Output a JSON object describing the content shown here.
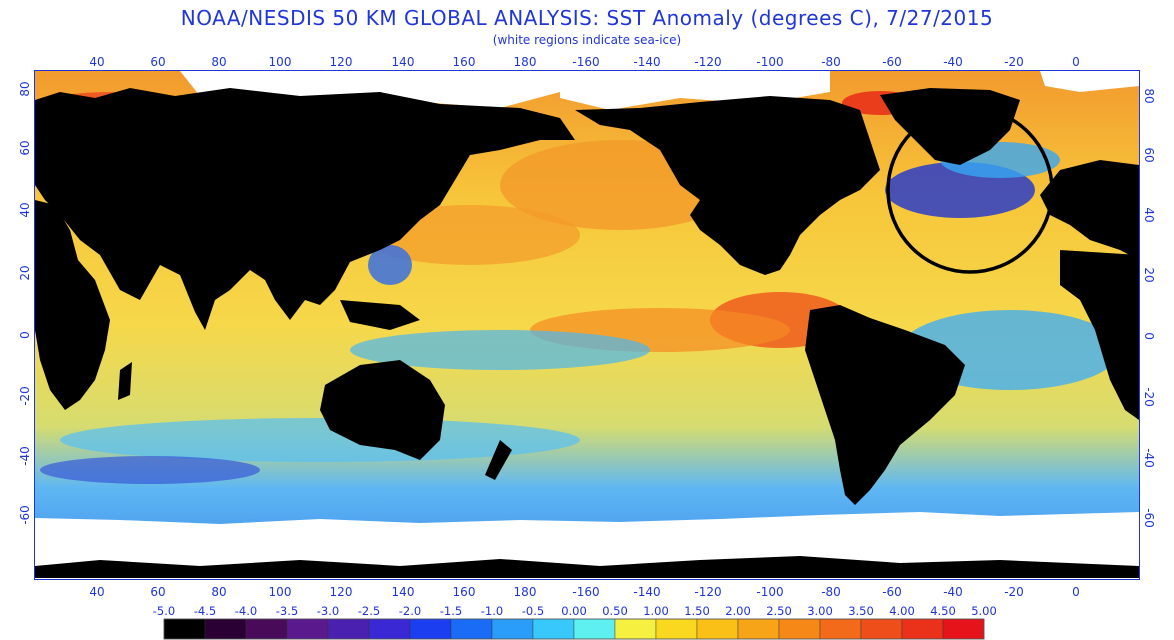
{
  "header": {
    "title": "NOAA/NESDIS 50 KM GLOBAL ANALYSIS: SST Anomaly (degrees C), 7/27/2015",
    "subtitle": "(white regions indicate sea-ice)"
  },
  "map": {
    "lon_labels": [
      "40",
      "60",
      "80",
      "100",
      "120",
      "140",
      "160",
      "180",
      "-160",
      "-140",
      "-120",
      "-100",
      "-80",
      "-60",
      "-40",
      "-20",
      "0"
    ],
    "lat_labels": [
      "80",
      "60",
      "40",
      "20",
      "0",
      "-20",
      "-40",
      "-60"
    ],
    "annotation": "circle-marking-north-atlantic-cold-anomaly"
  },
  "colorbar": {
    "labels": [
      "-5.0",
      "-4.5",
      "-4.0",
      "-3.5",
      "-3.0",
      "-2.5",
      "-2.0",
      "-1.5",
      "-1.0",
      "-0.5",
      "0.00",
      "0.50",
      "1.00",
      "1.50",
      "2.00",
      "2.50",
      "3.00",
      "3.50",
      "4.00",
      "4.50",
      "5.00"
    ],
    "colors": [
      "#000000",
      "#2a0034",
      "#4a0a5a",
      "#5a1a8e",
      "#4a20b0",
      "#3a28d4",
      "#1a3ef0",
      "#1a6cf6",
      "#2a9cfa",
      "#38c8fa",
      "#5ef0f0",
      "#f6f040",
      "#fbd820",
      "#fbc018",
      "#f8a418",
      "#f68818",
      "#f26a1a",
      "#ee4e1a",
      "#ea321a",
      "#e6141a"
    ]
  },
  "colors": {
    "label_blue": "#2036d8",
    "land": "#000000",
    "sea_ice": "#ffffff"
  }
}
